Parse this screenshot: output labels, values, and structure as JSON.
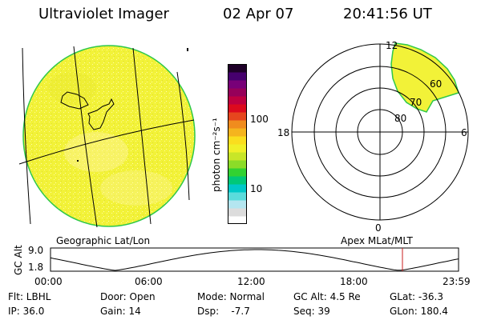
{
  "header": {
    "title": "Ultraviolet Imager",
    "date": "02 Apr 07",
    "time": "20:41:56 UT"
  },
  "earth_panel": {
    "caption": "Geographic Lat/Lon",
    "disk_color": "#f2f238",
    "limb_color": "#2ec84a"
  },
  "colorbar": {
    "unit_label": "photon cm⁻²s⁻¹",
    "ticks": [
      "100",
      "10"
    ],
    "colors": [
      "#ffffff",
      "#dcdcdc",
      "#b4e6f0",
      "#5adcdc",
      "#00c8c8",
      "#00c878",
      "#32d232",
      "#8cdc28",
      "#c8e628",
      "#f0f028",
      "#fade1e",
      "#f5b41e",
      "#f08c1e",
      "#e6461e",
      "#dc0a1e",
      "#be0040",
      "#96005a",
      "#780078",
      "#46006e",
      "#1e0028"
    ]
  },
  "polar_panel": {
    "caption": "Apex MLat/MLT",
    "mlt_labels": {
      "top": "12",
      "left": "18",
      "right": "6",
      "bottom": "0"
    },
    "lat_labels": [
      "80",
      "70",
      "60"
    ]
  },
  "altitude_plot": {
    "ylabel": "GC Alt",
    "yticks": [
      "9.0",
      "1.8"
    ],
    "ylim": [
      1.8,
      9.0
    ],
    "xticks": [
      "00:00",
      "06:00",
      "12:00",
      "18:00",
      "23:59"
    ],
    "current_marker_hour": 20.7
  },
  "info": {
    "flt": "Flt: LBHL",
    "ip": "IP: 36.0",
    "door": "Door: Open",
    "gain": "Gain: 14",
    "mode": "Mode: Normal",
    "dsp": "Dsp:    -7.7",
    "gc_alt": "GC Alt: 4.5 Re",
    "seq": "Seq: 39",
    "glat": "GLat: -36.3",
    "glon": "GLon: 180.4"
  }
}
